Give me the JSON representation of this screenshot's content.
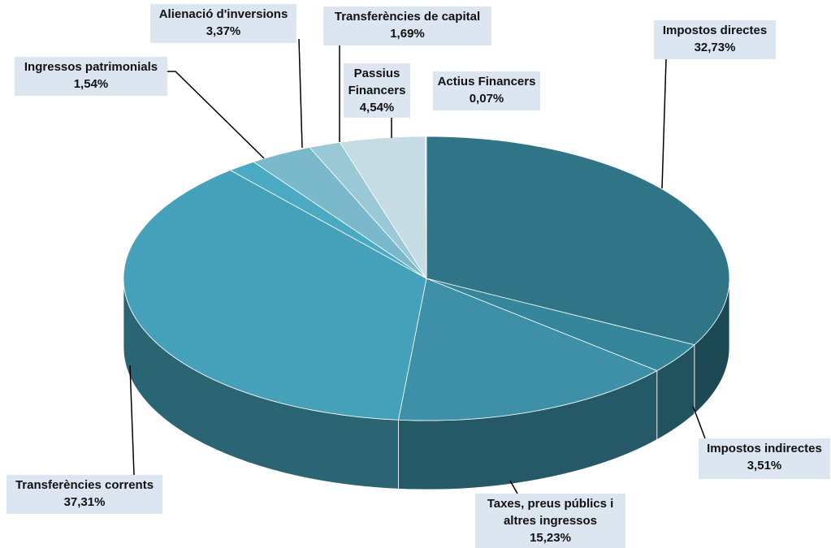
{
  "chart_data": {
    "type": "pie3d",
    "categories": [
      "Impostos directes",
      "Impostos indirectes",
      "Taxes, preus públics i altres ingressos",
      "Transferències corrents",
      "Ingressos patrimonials",
      "Alienació d'inversions",
      "Transferències de capital",
      "Passius Financers",
      "Actius Financers"
    ],
    "values": [
      32.73,
      3.51,
      15.23,
      37.31,
      1.54,
      3.37,
      1.69,
      4.54,
      0.07
    ],
    "value_labels": [
      "32,73%",
      "3,51%",
      "15,23%",
      "37,31%",
      "1,54%",
      "3,37%",
      "1,69%",
      "4,54%",
      "0,07%"
    ],
    "colors": [
      "#2f7587",
      "#35869a",
      "#3d90a8",
      "#45a1b9",
      "#4aaac4",
      "#7ab8cc",
      "#9ac8d6",
      "#c5dce4",
      "#c5dce4"
    ]
  }
}
